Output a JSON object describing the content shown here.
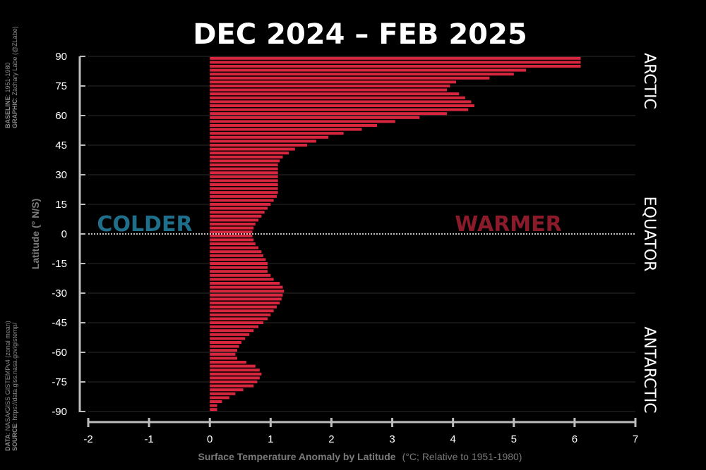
{
  "title": "DEC 2024 – FEB 2025",
  "colors": {
    "bar": "#d7263d",
    "colder": "#1f6f8b",
    "warmer": "#8b1a2a",
    "grid": "#2a2a2a",
    "axis": "#bdbdbd"
  },
  "annotations": {
    "colder": "COLDER",
    "warmer": "WARMER"
  },
  "regions": {
    "arctic": "ARCTIC",
    "equator": "EQUATOR",
    "antarctic": "ANTARCTIC"
  },
  "xaxis": {
    "label_bold": "Surface Temperature Anomaly by Latitude",
    "label_unit": "(°C; Relative to 1951-1980)"
  },
  "yaxis": {
    "label": "Latitude (° N/S)"
  },
  "credits_top": {
    "baseline_key": "BASELINE",
    "baseline_val": ": 1951-1980",
    "graphic_key": "GRAPHIC",
    "graphic_val": ": Zachary Labe (@ZLabe)"
  },
  "credits_bottom": {
    "data_key": "DATA",
    "data_val": ": NASA/GISS GISTEMPv4 (zonal mean)",
    "source_key": "SOURCE",
    "source_val": ": https://data.giss.nasa.gov/gistemp/"
  },
  "chart_data": {
    "type": "bar",
    "orientation": "horizontal",
    "title": "DEC 2024 – FEB 2025",
    "xlabel": "Surface Temperature Anomaly by Latitude (°C; Relative to 1951-1980)",
    "ylabel": "Latitude (° N/S)",
    "xlim": [
      -2,
      7
    ],
    "ylim": [
      -90,
      90
    ],
    "xticks": [
      -2,
      -1,
      0,
      1,
      2,
      3,
      4,
      5,
      6,
      7
    ],
    "yticks": [
      90,
      75,
      60,
      45,
      30,
      15,
      0,
      -15,
      -30,
      -45,
      -60,
      -75,
      -90
    ],
    "grid": true,
    "latitudes": [
      89,
      87,
      85,
      83,
      81,
      79,
      77,
      75,
      73,
      71,
      69,
      67,
      65,
      63,
      61,
      59,
      57,
      55,
      53,
      51,
      49,
      47,
      45,
      43,
      41,
      39,
      37,
      35,
      33,
      31,
      29,
      27,
      25,
      23,
      21,
      19,
      17,
      15,
      13,
      11,
      9,
      7,
      5,
      3,
      1,
      -1,
      -3,
      -5,
      -7,
      -9,
      -11,
      -13,
      -15,
      -17,
      -19,
      -21,
      -23,
      -25,
      -27,
      -29,
      -31,
      -33,
      -35,
      -37,
      -39,
      -41,
      -43,
      -45,
      -47,
      -49,
      -51,
      -53,
      -55,
      -57,
      -59,
      -61,
      -63,
      -65,
      -67,
      -69,
      -71,
      -73,
      -75,
      -77,
      -79,
      -81,
      -83,
      -85,
      -87,
      -89
    ],
    "values": [
      6.1,
      6.1,
      6.1,
      5.2,
      5.0,
      4.6,
      4.05,
      3.95,
      3.9,
      4.1,
      4.2,
      4.3,
      4.35,
      4.25,
      3.9,
      3.45,
      3.05,
      2.75,
      2.5,
      2.2,
      1.95,
      1.75,
      1.6,
      1.4,
      1.3,
      1.2,
      1.15,
      1.12,
      1.12,
      1.12,
      1.12,
      1.12,
      1.12,
      1.12,
      1.12,
      1.1,
      1.05,
      1.0,
      0.95,
      0.9,
      0.85,
      0.8,
      0.75,
      0.72,
      0.7,
      0.7,
      0.72,
      0.75,
      0.8,
      0.85,
      0.88,
      0.92,
      0.95,
      0.95,
      0.95,
      1.0,
      1.05,
      1.15,
      1.2,
      1.22,
      1.2,
      1.18,
      1.15,
      1.1,
      1.05,
      1.0,
      0.95,
      0.88,
      0.8,
      0.72,
      0.65,
      0.58,
      0.52,
      0.48,
      0.45,
      0.42,
      0.45,
      0.6,
      0.75,
      0.82,
      0.85,
      0.82,
      0.78,
      0.72,
      0.55,
      0.42,
      0.32,
      0.2,
      0.12,
      0.12
    ]
  }
}
